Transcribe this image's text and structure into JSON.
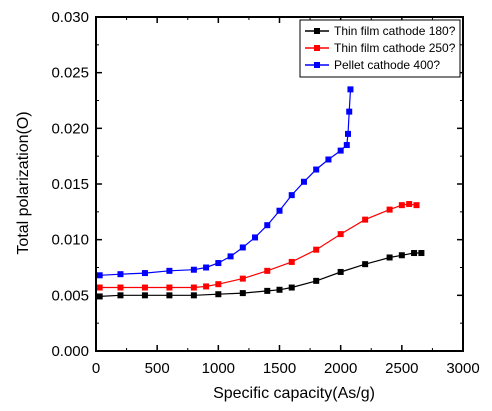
{
  "chart_data": {
    "type": "line",
    "xlabel": "Specific capacity(As/g)",
    "ylabel": "Total polarization(O)",
    "xlim": [
      0,
      3000
    ],
    "ylim": [
      0,
      0.03
    ],
    "x_ticks": [
      0,
      500,
      1000,
      1500,
      2000,
      2500,
      3000
    ],
    "x_tick_labels": [
      "0",
      "500",
      "1000",
      "1500",
      "2000",
      "2500",
      "3000"
    ],
    "y_ticks": [
      0,
      0.005,
      0.01,
      0.015,
      0.02,
      0.025,
      0.03
    ],
    "y_tick_labels": [
      "0.000",
      "0.005",
      "0.010",
      "0.015",
      "0.020",
      "0.025",
      "0.030"
    ],
    "grid": false,
    "legend_position": "top-right",
    "series": [
      {
        "name": "Thin film cathode 180?",
        "color": "#000000",
        "marker": "square",
        "x": [
          30,
          200,
          400,
          600,
          800,
          1000,
          1200,
          1400,
          1500,
          1600,
          1800,
          2000,
          2200,
          2400,
          2500,
          2600,
          2660
        ],
        "y": [
          0.0049,
          0.005,
          0.005,
          0.005,
          0.005,
          0.0051,
          0.0052,
          0.0054,
          0.0055,
          0.0057,
          0.0063,
          0.0071,
          0.0078,
          0.0084,
          0.0086,
          0.0088,
          0.0088
        ]
      },
      {
        "name": "Thin film cathode 250?",
        "color": "#ff0000",
        "marker": "square",
        "x": [
          30,
          200,
          400,
          600,
          800,
          900,
          1000,
          1200,
          1400,
          1600,
          1800,
          2000,
          2200,
          2400,
          2500,
          2560,
          2620
        ],
        "y": [
          0.0057,
          0.0057,
          0.0057,
          0.0057,
          0.0057,
          0.0058,
          0.006,
          0.0065,
          0.0072,
          0.008,
          0.0091,
          0.0105,
          0.0118,
          0.0127,
          0.0131,
          0.0132,
          0.0131
        ]
      },
      {
        "name": "Pellet cathode 400?",
        "color": "#0000ff",
        "marker": "square",
        "x": [
          30,
          200,
          400,
          600,
          800,
          900,
          1000,
          1100,
          1200,
          1300,
          1400,
          1500,
          1600,
          1700,
          1800,
          1900,
          2000,
          2050,
          2060,
          2070,
          2080
        ],
        "y": [
          0.0068,
          0.0069,
          0.007,
          0.0072,
          0.0073,
          0.0075,
          0.0079,
          0.0085,
          0.0093,
          0.0102,
          0.0113,
          0.0126,
          0.014,
          0.0152,
          0.0163,
          0.0172,
          0.018,
          0.0185,
          0.0195,
          0.0215,
          0.0235
        ]
      }
    ]
  }
}
